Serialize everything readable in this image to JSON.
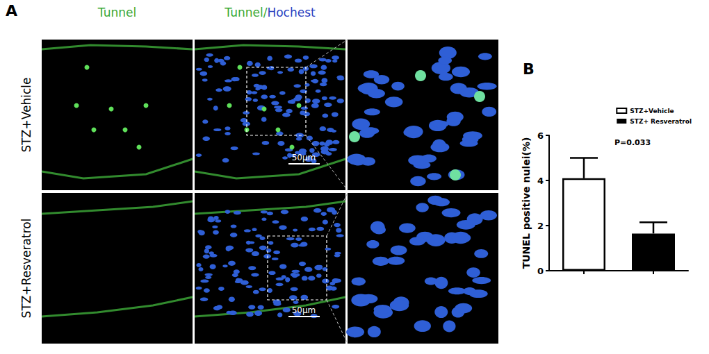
{
  "panel_labels": [
    "A",
    "B"
  ],
  "image_panel": {
    "column_titles": [
      "Tunnel",
      "Tunnel/Hochest"
    ],
    "row_labels": [
      "STZ+Vehicle",
      "STZ+Resveratrol"
    ],
    "scale_bar": "50μm"
  },
  "chart_data": {
    "type": "bar",
    "categories": [
      null,
      null
    ],
    "series": [
      {
        "name": "STZ+Vehicle",
        "color": "#ffffff",
        "values": [
          4.1,
          null
        ],
        "errors": [
          0.9,
          null
        ]
      },
      {
        "name": "STZ+ Resveratrol",
        "color": "#000000",
        "values": [
          null,
          1.65
        ],
        "errors": [
          null,
          0.5
        ]
      }
    ],
    "y_label": "TUNEL positive nulei(%)",
    "annotations": [
      "P=0.033"
    ],
    "ylim": [
      0,
      6
    ],
    "yticks": [
      0,
      2,
      4,
      6
    ],
    "grid": false,
    "legend": "upper-right",
    "stacked": true
  }
}
